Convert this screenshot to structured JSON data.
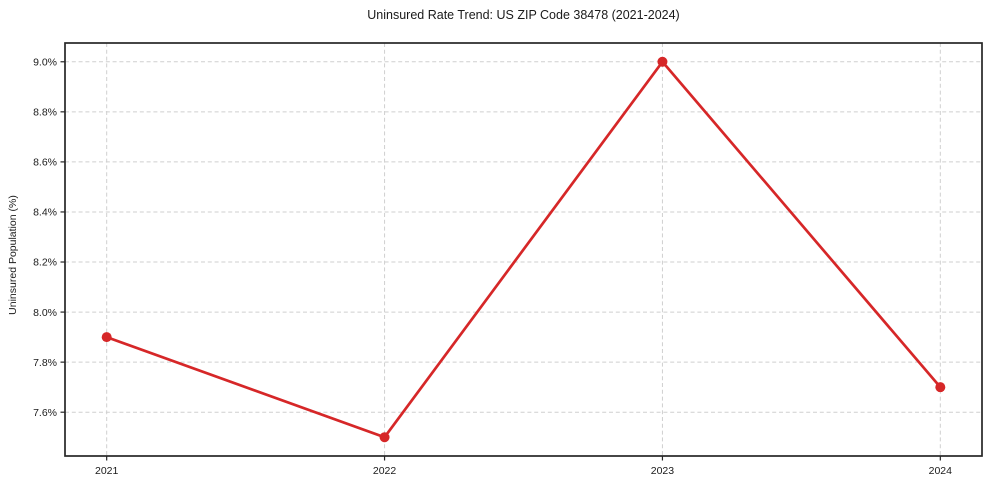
{
  "chart_data": {
    "type": "line",
    "title": "Uninsured Rate Trend: US ZIP Code 38478 (2021-2024)",
    "xlabel": "",
    "ylabel": "Uninsured Population (%)",
    "x": [
      2021,
      2022,
      2023,
      2024
    ],
    "x_tick_labels": [
      "2021",
      "2022",
      "2023",
      "2024"
    ],
    "series": [
      {
        "name": "Uninsured rate",
        "values": [
          7.9,
          7.5,
          9.0,
          7.7
        ]
      }
    ],
    "y_ticks": [
      7.6,
      7.8,
      8.0,
      8.2,
      8.4,
      8.6,
      8.8,
      9.0
    ],
    "y_tick_labels": [
      "7.6%",
      "7.8%",
      "8.0%",
      "8.2%",
      "8.4%",
      "8.6%",
      "8.8%",
      "9.0%"
    ],
    "xlim": [
      2020.85,
      2024.15
    ],
    "ylim": [
      7.425,
      9.075
    ],
    "grid": true,
    "grid_style": "dashed",
    "legend": "none",
    "line_color": "#d62728",
    "marker": "circle",
    "marker_color": "#d62728",
    "grid_color": "#cfcfcf",
    "spine_color": "#262626"
  }
}
